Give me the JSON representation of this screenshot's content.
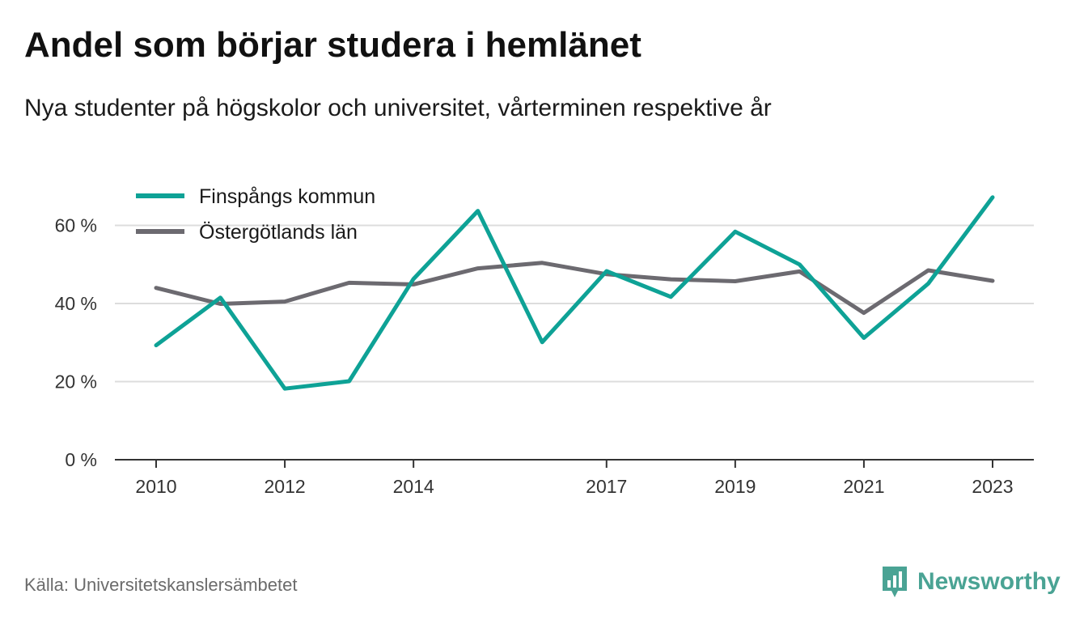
{
  "header": {
    "title": "Andel som börjar studera i hemlänet",
    "subtitle": "Nya studenter på högskolor och universitet, vårterminen respektive år"
  },
  "footer": {
    "source": "Källa: Universitetskanslersämbetet",
    "brand": "Newsworthy",
    "brand_icon": "newsworthy-logo-icon"
  },
  "colors": {
    "series_1": "#0ea296",
    "series_2": "#6c6a70",
    "grid": "#dddddd",
    "axis": "#333333",
    "brand": "#4aa394"
  },
  "chart_data": {
    "type": "line",
    "x": [
      2010,
      2011,
      2012,
      2013,
      2014,
      2015,
      2016,
      2017,
      2018,
      2019,
      2020,
      2021,
      2022,
      2023
    ],
    "x_tick_labels": [
      "2010",
      "2012",
      "2014",
      "2017",
      "2019",
      "2021",
      "2023"
    ],
    "y_ticks": [
      0,
      20,
      40,
      60
    ],
    "y_tick_labels": [
      "0 %",
      "20 %",
      "40 %",
      "60 %"
    ],
    "ylim": [
      0,
      70
    ],
    "grid": true,
    "legend_position": "top-left",
    "series": [
      {
        "name": "Finspångs kommun",
        "values": [
          29.3,
          41.5,
          18.2,
          20.1,
          46.3,
          63.7,
          30.1,
          48.3,
          41.7,
          58.4,
          50.0,
          31.2,
          45.1,
          67.2
        ]
      },
      {
        "name": "Östergötlands län",
        "values": [
          44.0,
          39.9,
          40.5,
          45.3,
          44.9,
          49.0,
          50.4,
          47.5,
          46.2,
          45.7,
          48.2,
          37.6,
          48.5,
          45.8
        ]
      }
    ]
  }
}
